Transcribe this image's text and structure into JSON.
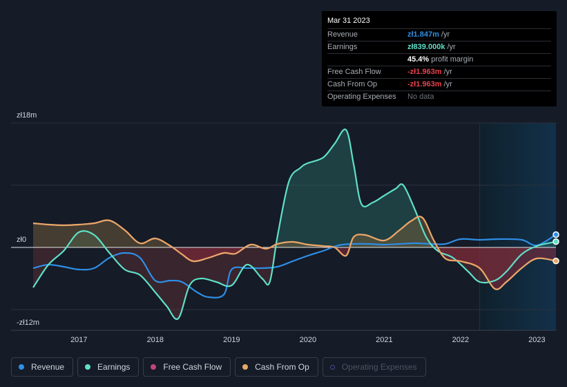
{
  "tooltip": {
    "date": "Mar 31 2023",
    "rows": [
      {
        "label": "Revenue",
        "value": "zł1.847m",
        "unit": " /yr",
        "extra": ""
      },
      {
        "label": "Earnings",
        "value": "zł839.000k",
        "unit": " /yr",
        "extra": ""
      },
      {
        "label": "",
        "value": "45.4%",
        "unit": "",
        "extra": " profit margin"
      },
      {
        "label": "Free Cash Flow",
        "value": "-zł1.963m",
        "unit": " /yr",
        "extra": ""
      },
      {
        "label": "Cash From Op",
        "value": "-zł1.963m",
        "unit": " /yr",
        "extra": ""
      },
      {
        "label": "Operating Expenses",
        "value": "",
        "unit": "",
        "extra": "No data"
      }
    ]
  },
  "legend": [
    {
      "label": "Revenue",
      "color": "#2f8ee6",
      "active": true
    },
    {
      "label": "Earnings",
      "color": "#5fe0c8",
      "active": true
    },
    {
      "label": "Free Cash Flow",
      "color": "#c2447d",
      "active": true
    },
    {
      "label": "Cash From Op",
      "color": "#e8a866",
      "active": true
    },
    {
      "label": "Operating Expenses",
      "color": "#4a4d8a",
      "active": false
    }
  ],
  "chart_data": {
    "type": "line",
    "title": "",
    "ylabel": "",
    "ylim": [
      -12,
      18
    ],
    "xlim": [
      2016.4,
      2023.25
    ],
    "y_tick_labels": [
      {
        "value": 18,
        "label": "zł18m"
      },
      {
        "value": 0,
        "label": "zł0"
      },
      {
        "value": -12,
        "label": "-zł12m"
      }
    ],
    "x_ticks": [
      2017,
      2018,
      2019,
      2020,
      2021,
      2022,
      2023
    ],
    "x_tick_labels": [
      "2017",
      "2018",
      "2019",
      "2020",
      "2021",
      "2022",
      "2023"
    ],
    "highlight_start": 2022.25,
    "series": [
      {
        "name": "Earnings",
        "color": "#5fe0c8",
        "x": [
          2016.4,
          2016.6,
          2016.8,
          2017.0,
          2017.2,
          2017.4,
          2017.6,
          2017.8,
          2018.0,
          2018.15,
          2018.3,
          2018.45,
          2018.6,
          2018.8,
          2019.0,
          2019.2,
          2019.4,
          2019.5,
          2019.6,
          2019.75,
          2019.9,
          2020.0,
          2020.2,
          2020.35,
          2020.5,
          2020.6,
          2020.7,
          2020.85,
          2021.0,
          2021.15,
          2021.25,
          2021.4,
          2021.55,
          2021.7,
          2021.9,
          2022.1,
          2022.25,
          2022.45,
          2022.6,
          2022.8,
          2023.0,
          2023.25
        ],
        "values": [
          -5.8,
          -2.5,
          -0.5,
          2.2,
          1.8,
          -0.8,
          -3.2,
          -4.0,
          -6.5,
          -8.5,
          -10.3,
          -5.5,
          -4.5,
          -5.0,
          -5.5,
          -2.5,
          -4.5,
          -5.0,
          1.5,
          9.5,
          11.5,
          12.2,
          13.0,
          15.0,
          17.0,
          12.0,
          6.3,
          6.5,
          7.5,
          8.5,
          9.0,
          5.5,
          1.5,
          -0.5,
          -1.5,
          -3.5,
          -5.0,
          -4.8,
          -3.5,
          -1.0,
          0.2,
          0.84
        ]
      },
      {
        "name": "Revenue",
        "color": "#2f8ee6",
        "x": [
          2016.4,
          2016.6,
          2016.8,
          2017.0,
          2017.2,
          2017.4,
          2017.6,
          2017.8,
          2018.0,
          2018.2,
          2018.35,
          2018.55,
          2018.7,
          2018.9,
          2019.0,
          2019.2,
          2019.4,
          2019.6,
          2019.8,
          2020.0,
          2020.2,
          2020.4,
          2020.6,
          2020.8,
          2021.0,
          2021.2,
          2021.4,
          2021.6,
          2021.8,
          2022.0,
          2022.25,
          2022.5,
          2022.8,
          2023.0,
          2023.25
        ],
        "values": [
          -3.0,
          -2.5,
          -2.8,
          -3.2,
          -3.0,
          -1.5,
          -0.8,
          -1.5,
          -4.8,
          -4.8,
          -5.0,
          -6.5,
          -7.2,
          -6.8,
          -3.2,
          -3.0,
          -3.0,
          -2.8,
          -2.0,
          -1.2,
          -0.5,
          0.3,
          0.5,
          0.5,
          0.4,
          0.5,
          0.6,
          0.5,
          0.5,
          1.2,
          1.1,
          1.2,
          1.1,
          0.3,
          1.85
        ]
      },
      {
        "name": "Free Cash Flow",
        "color": "#c2447d",
        "x": [
          2016.4,
          2016.6,
          2016.8,
          2017.0,
          2017.2,
          2017.4,
          2017.6,
          2017.8,
          2018.0,
          2018.2,
          2018.35,
          2018.5,
          2018.7,
          2018.9,
          2019.05,
          2019.25,
          2019.45,
          2019.6,
          2019.8,
          2020.0,
          2020.2,
          2020.35,
          2020.5,
          2020.6,
          2020.75,
          2021.0,
          2021.2,
          2021.35,
          2021.5,
          2021.65,
          2021.8,
          2022.0,
          2022.25,
          2022.45,
          2022.6,
          2022.8,
          2023.0,
          2023.25
        ],
        "values": [
          3.5,
          3.3,
          3.2,
          3.3,
          3.5,
          3.9,
          2.5,
          0.6,
          1.3,
          0.2,
          -1.0,
          -2.0,
          -1.5,
          -0.8,
          -0.9,
          0.4,
          -0.2,
          0.5,
          0.8,
          0.4,
          0.2,
          0.0,
          -1.2,
          1.5,
          1.8,
          1.0,
          2.5,
          3.8,
          4.3,
          1.0,
          -1.6,
          -2.0,
          -3.0,
          -6.0,
          -5.0,
          -3.0,
          -1.6,
          -1.96
        ]
      },
      {
        "name": "Cash From Op",
        "color": "#e8a866",
        "x": [
          2016.4,
          2016.6,
          2016.8,
          2017.0,
          2017.2,
          2017.4,
          2017.6,
          2017.8,
          2018.0,
          2018.2,
          2018.35,
          2018.5,
          2018.7,
          2018.9,
          2019.05,
          2019.25,
          2019.45,
          2019.6,
          2019.8,
          2020.0,
          2020.2,
          2020.35,
          2020.5,
          2020.6,
          2020.75,
          2021.0,
          2021.2,
          2021.35,
          2021.5,
          2021.65,
          2021.8,
          2022.0,
          2022.25,
          2022.45,
          2022.6,
          2022.8,
          2023.0,
          2023.25
        ],
        "values": [
          3.5,
          3.3,
          3.2,
          3.3,
          3.5,
          3.9,
          2.5,
          0.6,
          1.3,
          0.2,
          -1.0,
          -2.0,
          -1.5,
          -0.8,
          -0.9,
          0.4,
          -0.2,
          0.5,
          0.8,
          0.4,
          0.2,
          0.0,
          -1.2,
          1.5,
          1.8,
          1.0,
          2.5,
          3.8,
          4.3,
          1.0,
          -1.6,
          -2.0,
          -3.0,
          -6.0,
          -5.0,
          -3.0,
          -1.6,
          -1.96
        ]
      }
    ]
  }
}
